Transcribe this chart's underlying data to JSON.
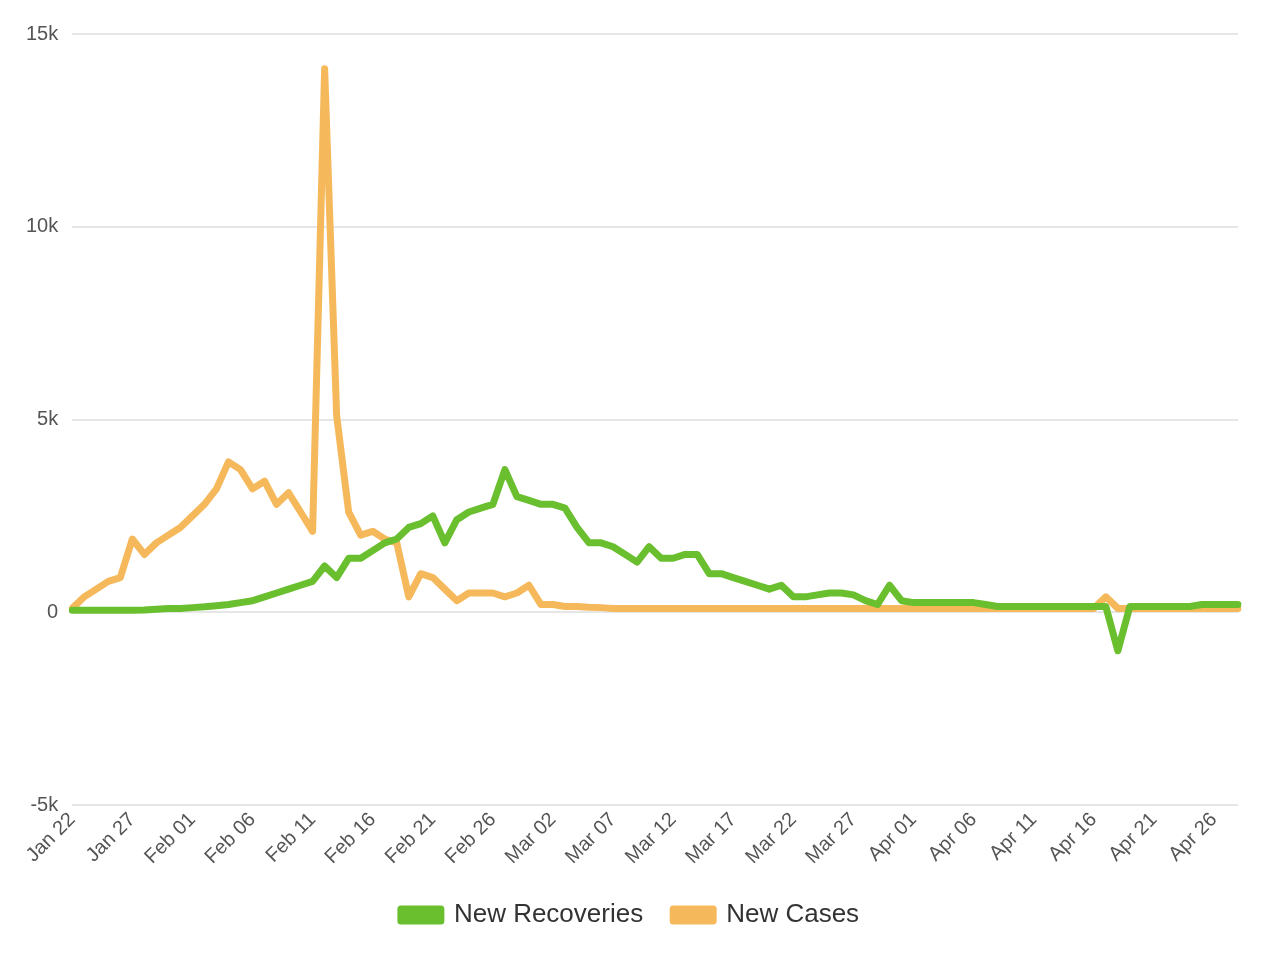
{
  "chart_data": {
    "type": "line",
    "categories": [
      "Jan 22",
      null,
      null,
      null,
      null,
      "Jan 27",
      null,
      null,
      null,
      null,
      "Feb 01",
      null,
      null,
      null,
      null,
      "Feb 06",
      null,
      null,
      null,
      null,
      "Feb 11",
      null,
      null,
      null,
      null,
      "Feb 16",
      null,
      null,
      null,
      null,
      "Feb 21",
      null,
      null,
      null,
      null,
      "Feb 26",
      null,
      null,
      null,
      null,
      "Mar 02",
      null,
      null,
      null,
      null,
      "Mar 07",
      null,
      null,
      null,
      null,
      "Mar 12",
      null,
      null,
      null,
      null,
      "Mar 17",
      null,
      null,
      null,
      null,
      "Mar 22",
      null,
      null,
      null,
      null,
      "Mar 27",
      null,
      null,
      null,
      null,
      "Apr 01",
      null,
      null,
      null,
      null,
      "Apr 06",
      null,
      null,
      null,
      null,
      "Apr 11",
      null,
      null,
      null,
      null,
      "Apr 16",
      null,
      null,
      null,
      null,
      "Apr 21",
      null,
      null,
      null,
      null,
      "Apr 26",
      null,
      null
    ],
    "series": [
      {
        "name": "New Recoveries",
        "color": "#6abf2e",
        "values": [
          50,
          50,
          50,
          50,
          50,
          50,
          60,
          80,
          100,
          100,
          120,
          140,
          170,
          200,
          250,
          300,
          400,
          500,
          600,
          700,
          800,
          1200,
          900,
          1400,
          1400,
          1600,
          1800,
          1900,
          2200,
          2300,
          2500,
          1800,
          2400,
          2600,
          2700,
          2800,
          3700,
          3000,
          2900,
          2800,
          2800,
          2700,
          2200,
          1800,
          1800,
          1700,
          1500,
          1300,
          1700,
          1400,
          1400,
          1500,
          1500,
          1000,
          1000,
          900,
          800,
          700,
          600,
          700,
          400,
          400,
          450,
          500,
          500,
          450,
          300,
          200,
          700,
          300,
          250,
          250,
          250,
          250,
          250,
          250,
          200,
          150,
          150,
          150,
          150,
          150,
          150,
          150,
          150,
          150,
          150,
          -1000,
          150,
          150,
          150,
          150,
          150,
          150,
          200,
          200,
          200,
          200
        ]
      },
      {
        "name": "New Cases",
        "color": "#f5b95c",
        "values": [
          100,
          400,
          600,
          800,
          900,
          1900,
          1500,
          1800,
          2000,
          2200,
          2500,
          2800,
          3200,
          3900,
          3700,
          3200,
          3400,
          2800,
          3100,
          2600,
          2100,
          14100,
          5100,
          2600,
          2000,
          2100,
          1900,
          1800,
          400,
          1000,
          900,
          600,
          300,
          500,
          500,
          500,
          400,
          500,
          700,
          200,
          200,
          150,
          150,
          130,
          120,
          100,
          100,
          100,
          100,
          100,
          100,
          100,
          100,
          100,
          100,
          100,
          100,
          100,
          100,
          100,
          100,
          100,
          100,
          100,
          100,
          100,
          100,
          100,
          100,
          100,
          100,
          100,
          100,
          100,
          100,
          100,
          100,
          100,
          100,
          100,
          100,
          100,
          100,
          100,
          100,
          100,
          400,
          100,
          100,
          100,
          100,
          100,
          100,
          100,
          100,
          100,
          100,
          100
        ]
      }
    ],
    "ylim": [
      -5000,
      15000
    ],
    "yticks": [
      {
        "value": -5000,
        "label": "-5k"
      },
      {
        "value": 0,
        "label": "0"
      },
      {
        "value": 5000,
        "label": "5k"
      },
      {
        "value": 10000,
        "label": "10k"
      },
      {
        "value": 15000,
        "label": "15k"
      }
    ],
    "grid": "y",
    "legend": "bottom",
    "marker": "none",
    "line_style": "solid"
  }
}
